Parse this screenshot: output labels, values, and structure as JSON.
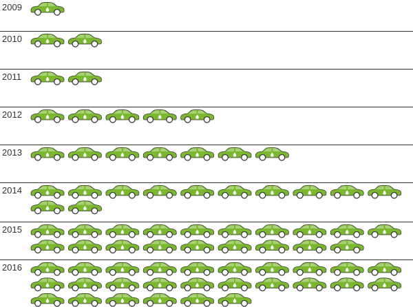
{
  "chart_data": {
    "type": "bar",
    "title": "",
    "xlabel": "",
    "ylabel": "",
    "orientation": "horizontal pictogram (one car icon per unit)",
    "categories": [
      "2009",
      "2010",
      "2011",
      "2012",
      "2013",
      "2014",
      "2015",
      "2016"
    ],
    "values": [
      1,
      2,
      2,
      5,
      7,
      12,
      19,
      26
    ],
    "icon": "car-icon",
    "colors": {
      "car": "#7cb82f",
      "outline": "#3a3a3a",
      "separator": "#333333"
    }
  }
}
